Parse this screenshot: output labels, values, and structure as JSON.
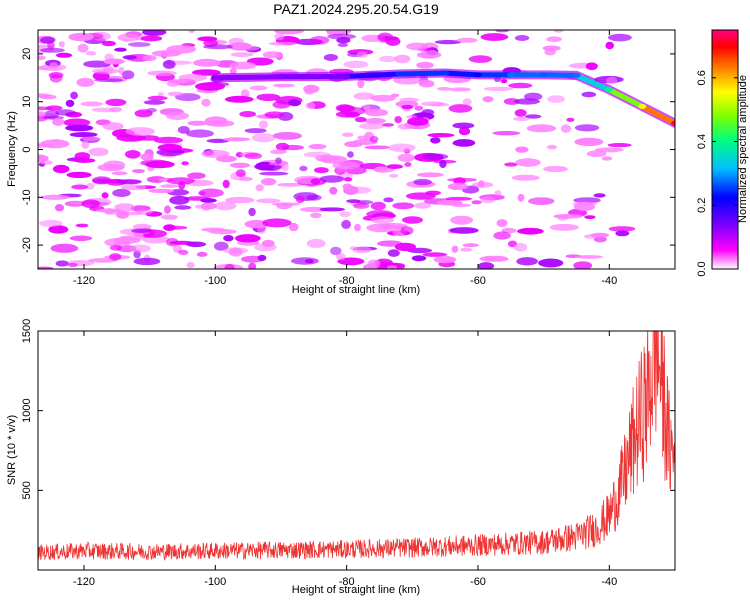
{
  "title": "PAZ1.2024.295.20.54.G19",
  "chart_data": [
    {
      "type": "heatmap",
      "xlabel": "Height of straight line (km)",
      "ylabel": "Frequency (Hz)",
      "xlim": [
        -127,
        -30
      ],
      "ylim": [
        -25,
        25
      ],
      "xticks": [
        -120,
        -100,
        -80,
        -60,
        -40
      ],
      "yticks": [
        -20,
        -10,
        0,
        10,
        20
      ],
      "colorbar": {
        "label": "Normalized spectral amplitude",
        "range": [
          0,
          0.75
        ],
        "ticks": [
          0.0,
          0.2,
          0.4,
          0.6
        ]
      },
      "ridge": {
        "x": [
          -100,
          -90,
          -80,
          -72,
          -65,
          -60,
          -55,
          -50,
          -45,
          -40,
          -35,
          -30
        ],
        "y": [
          15.0,
          15.2,
          15.3,
          15.8,
          16.0,
          15.6,
          15.6,
          15.6,
          15.5,
          12.5,
          9.0,
          5.5
        ],
        "amplitude": [
          0.12,
          0.13,
          0.14,
          0.25,
          0.25,
          0.22,
          0.28,
          0.27,
          0.28,
          0.4,
          0.55,
          0.72
        ]
      },
      "colors": [
        "#ffffff",
        "#ff00ff",
        "#7f00ff",
        "#0000ff",
        "#00bfff",
        "#00ff7f",
        "#7fff00",
        "#ffff00",
        "#ff7f00",
        "#ff0000",
        "#ff0080"
      ]
    },
    {
      "type": "line",
      "xlabel": "Height of straight line (km)",
      "ylabel": "SNR (10 * v/v)",
      "xlim": [
        -127,
        -30
      ],
      "ylim": [
        0,
        1500
      ],
      "xticks": [
        -120,
        -100,
        -80,
        -60,
        -40
      ],
      "yticks": [
        500,
        1000,
        1500
      ],
      "series": [
        {
          "color": "#ee3333",
          "x": [
            -127,
            -120,
            -110,
            -100,
            -90,
            -80,
            -70,
            -60,
            -50,
            -45,
            -42,
            -40,
            -38,
            -36,
            -34,
            -33,
            -32,
            -31,
            -30
          ],
          "y": [
            110,
            120,
            115,
            120,
            125,
            130,
            140,
            155,
            175,
            210,
            260,
            340,
            550,
            850,
            1100,
            1450,
            1200,
            800,
            700
          ]
        }
      ]
    }
  ]
}
